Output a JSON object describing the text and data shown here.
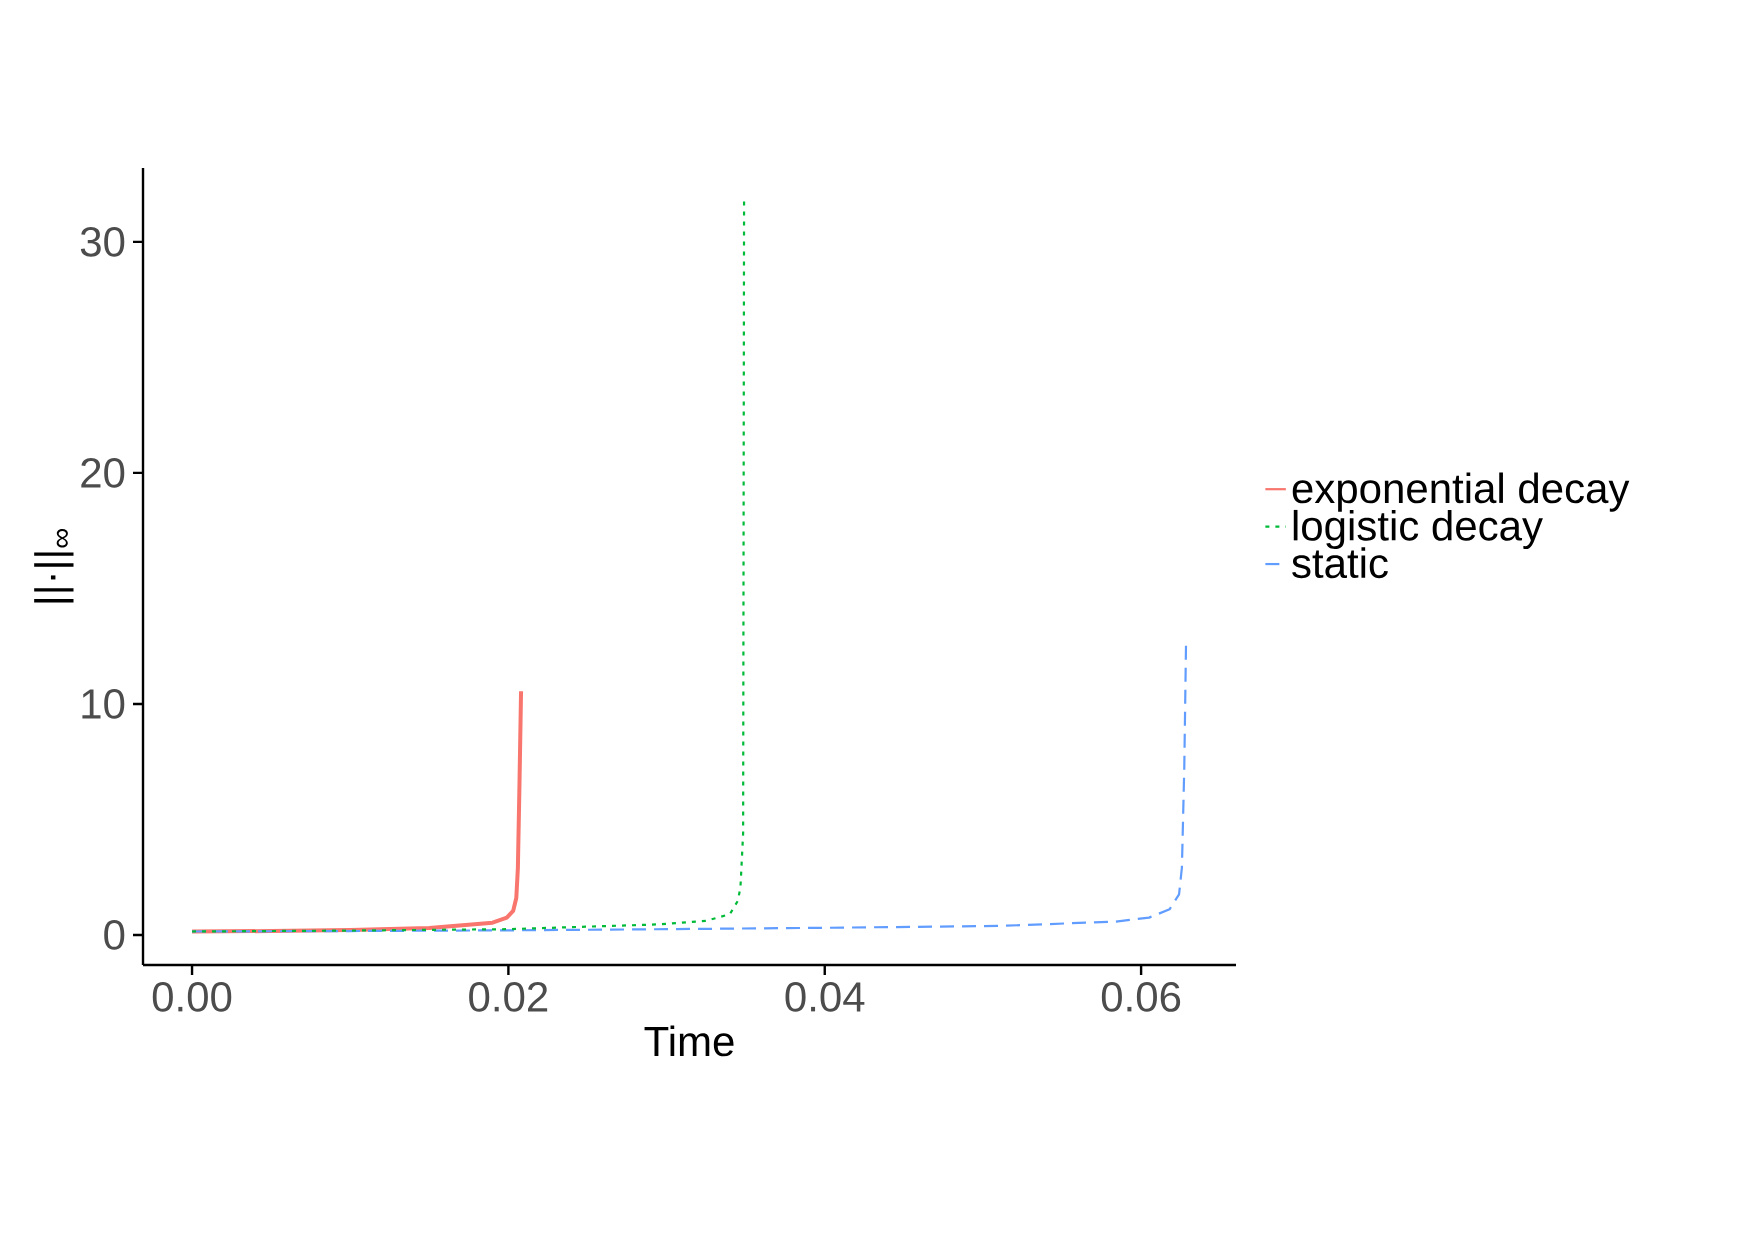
{
  "chart_data": {
    "type": "line",
    "xlabel": "Time",
    "ylabel": "||·||$_{∞}$",
    "xlim": [
      -0.0031,
      0.066
    ],
    "ylim": [
      -1.3,
      33.2
    ],
    "xticks": [
      {
        "value": 0,
        "label": "0.00"
      },
      {
        "value": 0.02,
        "label": "0.02"
      },
      {
        "value": 0.04,
        "label": "0.04"
      },
      {
        "value": 0.06,
        "label": "0.06"
      }
    ],
    "yticks": [
      0,
      10,
      20,
      30
    ],
    "grid": false,
    "legend": "right",
    "marker": "none",
    "series": [
      {
        "name": "exponential decay",
        "color": "#f8766d",
        "line_style": "solid",
        "x": [
          0,
          0.005,
          0.01,
          0.015,
          0.019,
          0.0199,
          0.0203,
          0.0205,
          0.0206,
          0.0207,
          0.0208
        ],
        "values": [
          0.15,
          0.17,
          0.21,
          0.3,
          0.53,
          0.75,
          1.04,
          1.6,
          2.9,
          6.5,
          10.55
        ]
      },
      {
        "name": "logistic decay",
        "color": "#00ba38",
        "line_style": "dotted",
        "x": [
          0,
          0.01,
          0.02,
          0.0296,
          0.0325,
          0.034,
          0.0345,
          0.03467,
          0.03484,
          0.0349
        ],
        "values": [
          0.15,
          0.19,
          0.25,
          0.46,
          0.61,
          0.9,
          1.47,
          2.05,
          4.4,
          31.75
        ]
      },
      {
        "name": "static",
        "color": "#619cff",
        "line_style": "dashed",
        "x": [
          0,
          0.01,
          0.02,
          0.03,
          0.04,
          0.0511,
          0.0584,
          0.0605,
          0.0618,
          0.0624,
          0.06258,
          0.06273,
          0.06284
        ],
        "values": [
          0.15,
          0.17,
          0.2,
          0.25,
          0.31,
          0.39,
          0.58,
          0.75,
          1.11,
          1.76,
          2.92,
          7.25,
          12.6
        ]
      }
    ]
  }
}
